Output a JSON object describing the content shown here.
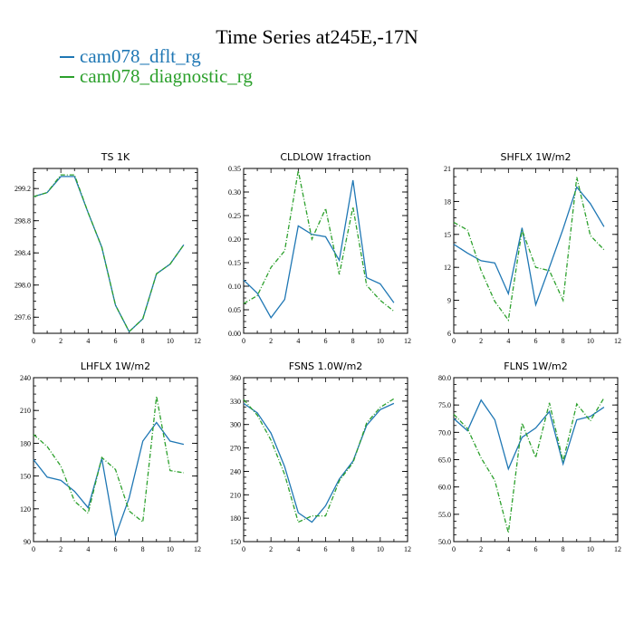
{
  "title": "Time Series at245E,-17N",
  "legend": [
    {
      "label": "cam078_dflt_rg",
      "color": "#1f77b4"
    },
    {
      "label": "cam078_diagnostic_rg",
      "color": "#2ca02c"
    }
  ],
  "chart_data": [
    {
      "type": "line",
      "title": "TS   1K",
      "xlim": [
        0,
        12
      ],
      "ylim": [
        297.4,
        299.45
      ],
      "xticks": [
        0,
        2,
        4,
        6,
        8,
        10,
        12
      ],
      "yticks": [
        "297.6",
        "298.0",
        "298.4",
        "298.8",
        "299.2"
      ],
      "x": [
        0,
        1,
        2,
        3,
        4,
        5,
        6,
        7,
        8,
        9,
        10,
        11
      ],
      "series": [
        {
          "name": "cam078_dflt_rg",
          "style": "solid",
          "values": [
            299.1,
            299.15,
            299.35,
            299.35,
            298.9,
            298.47,
            297.75,
            297.42,
            297.58,
            298.14,
            298.26,
            298.5
          ]
        },
        {
          "name": "cam078_diagnostic_rg",
          "style": "dashed",
          "values": [
            299.1,
            299.15,
            299.37,
            299.37,
            298.9,
            298.47,
            297.75,
            297.42,
            297.58,
            298.14,
            298.26,
            298.5
          ]
        }
      ]
    },
    {
      "type": "line",
      "title": "CLDLOW   1fraction",
      "xlim": [
        0,
        12
      ],
      "ylim": [
        0.0,
        0.35
      ],
      "xticks": [
        0,
        2,
        4,
        6,
        8,
        10,
        12
      ],
      "yticks": [
        "0.00",
        "0.05",
        "0.10",
        "0.15",
        "0.20",
        "0.25",
        "0.30",
        "0.35"
      ],
      "x": [
        0,
        1,
        2,
        3,
        4,
        5,
        6,
        7,
        8,
        9,
        10,
        11
      ],
      "series": [
        {
          "name": "cam078_dflt_rg",
          "style": "solid",
          "values": [
            0.113,
            0.085,
            0.033,
            0.072,
            0.228,
            0.21,
            0.205,
            0.155,
            0.325,
            0.118,
            0.105,
            0.065
          ]
        },
        {
          "name": "cam078_diagnostic_rg",
          "style": "dashed",
          "values": [
            0.063,
            0.08,
            0.14,
            0.175,
            0.345,
            0.2,
            0.265,
            0.125,
            0.268,
            0.102,
            0.07,
            0.047
          ]
        }
      ]
    },
    {
      "type": "line",
      "title": "SHFLX   1W/m2",
      "xlim": [
        0,
        12
      ],
      "ylim": [
        6,
        21
      ],
      "xticks": [
        0,
        2,
        4,
        6,
        8,
        10,
        12
      ],
      "yticks": [
        "6",
        "9",
        "12",
        "15",
        "18",
        "21"
      ],
      "x": [
        0,
        1,
        2,
        3,
        4,
        5,
        6,
        7,
        8,
        9,
        10,
        11
      ],
      "series": [
        {
          "name": "cam078_dflt_rg",
          "style": "solid",
          "values": [
            14.1,
            13.3,
            12.6,
            12.4,
            9.6,
            15.6,
            8.6,
            12.0,
            15.5,
            19.3,
            17.8,
            15.7
          ]
        },
        {
          "name": "cam078_diagnostic_rg",
          "style": "dashed",
          "values": [
            16.1,
            15.4,
            11.7,
            8.9,
            7.2,
            15.4,
            12.0,
            11.7,
            9.0,
            20.2,
            14.9,
            13.6
          ]
        }
      ]
    },
    {
      "type": "line",
      "title": "LHFLX   1W/m2",
      "xlim": [
        0,
        12
      ],
      "ylim": [
        90,
        240
      ],
      "xticks": [
        0,
        2,
        4,
        6,
        8,
        10,
        12
      ],
      "yticks": [
        "90",
        "120",
        "150",
        "180",
        "210",
        "240"
      ],
      "x": [
        0,
        1,
        2,
        3,
        4,
        5,
        6,
        7,
        8,
        9,
        10,
        11
      ],
      "series": [
        {
          "name": "cam078_dflt_rg",
          "style": "solid",
          "values": [
            165,
            149,
            146,
            136,
            121,
            166,
            95,
            130,
            182,
            199,
            182,
            179
          ]
        },
        {
          "name": "cam078_diagnostic_rg",
          "style": "dashed",
          "values": [
            188,
            177,
            159,
            127,
            116,
            167,
            156,
            118,
            108,
            223,
            155,
            153
          ]
        }
      ]
    },
    {
      "type": "line",
      "title": "FSNS   1.0W/m2",
      "xlim": [
        0,
        12
      ],
      "ylim": [
        150,
        360
      ],
      "xticks": [
        0,
        2,
        4,
        6,
        8,
        10,
        12
      ],
      "yticks": [
        "150",
        "180",
        "210",
        "240",
        "270",
        "300",
        "330",
        "360"
      ],
      "x": [
        0,
        1,
        2,
        3,
        4,
        5,
        6,
        7,
        8,
        9,
        10,
        11
      ],
      "series": [
        {
          "name": "cam078_dflt_rg",
          "style": "solid",
          "values": [
            327,
            315,
            289,
            246,
            187,
            175,
            196,
            230,
            253,
            299,
            319,
            327
          ]
        },
        {
          "name": "cam078_diagnostic_rg",
          "style": "dashed",
          "values": [
            332,
            312,
            280,
            236,
            175,
            183,
            183,
            228,
            251,
            302,
            322,
            333
          ]
        }
      ]
    },
    {
      "type": "line",
      "title": "FLNS   1W/m2",
      "xlim": [
        0,
        12
      ],
      "ylim": [
        50,
        80
      ],
      "xticks": [
        0,
        2,
        4,
        6,
        8,
        10,
        12
      ],
      "yticks": [
        "50.0",
        "55.0",
        "60.0",
        "65.0",
        "70.0",
        "75.0",
        "80.0"
      ],
      "x": [
        0,
        1,
        2,
        3,
        4,
        5,
        6,
        7,
        8,
        9,
        10,
        11
      ],
      "series": [
        {
          "name": "cam078_dflt_rg",
          "style": "solid",
          "values": [
            72.5,
            70.3,
            75.9,
            72.3,
            63.3,
            69.1,
            70.8,
            73.8,
            64.2,
            72.3,
            72.9,
            74.6
          ]
        },
        {
          "name": "cam078_diagnostic_rg",
          "style": "dashed",
          "values": [
            73.3,
            70.7,
            65.3,
            61.2,
            51.6,
            71.7,
            65.4,
            75.4,
            64.7,
            75.2,
            72.1,
            76.3
          ]
        }
      ]
    }
  ]
}
